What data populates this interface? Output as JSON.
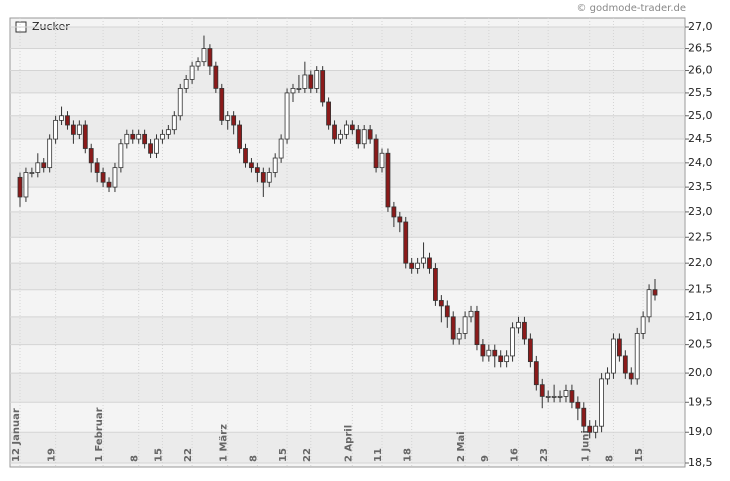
{
  "chart_data": {
    "type": "candlestick",
    "series_name": "Zucker",
    "copyright": "© godmode-trader.de",
    "log_scale": true,
    "grid": true,
    "up_color": "#ffffff",
    "down_color": "#8b1a1a",
    "stroke_color": "#333333",
    "ylim": [
      18.5,
      27.0
    ],
    "yticks": [
      {
        "value": 18.5,
        "label": "18,5"
      },
      {
        "value": 19.0,
        "label": "19,0"
      },
      {
        "value": 19.5,
        "label": "19,5"
      },
      {
        "value": 20.0,
        "label": "20,0"
      },
      {
        "value": 20.5,
        "label": "20,5"
      },
      {
        "value": 21.0,
        "label": "21,0"
      },
      {
        "value": 21.5,
        "label": "21,5"
      },
      {
        "value": 22.0,
        "label": "22,0"
      },
      {
        "value": 22.5,
        "label": "22,5"
      },
      {
        "value": 23.0,
        "label": "23,0"
      },
      {
        "value": 23.5,
        "label": "23,5"
      },
      {
        "value": 24.0,
        "label": "24,0"
      },
      {
        "value": 24.5,
        "label": "24,5"
      },
      {
        "value": 25.0,
        "label": "25,0"
      },
      {
        "value": 25.5,
        "label": "25,5"
      },
      {
        "value": 26.0,
        "label": "26,0"
      },
      {
        "value": 26.5,
        "label": "26,5"
      },
      {
        "value": 27.0,
        "label": "27,0"
      }
    ],
    "categories": [
      "12 Januar",
      null,
      null,
      null,
      null,
      null,
      "19",
      null,
      null,
      null,
      null,
      null,
      null,
      null,
      "1 Februar",
      null,
      null,
      null,
      null,
      null,
      "8",
      null,
      null,
      null,
      "15",
      null,
      null,
      null,
      null,
      "22",
      null,
      null,
      null,
      null,
      null,
      "1 März",
      null,
      null,
      null,
      null,
      "8",
      null,
      null,
      null,
      null,
      "15",
      null,
      null,
      null,
      "22",
      null,
      null,
      null,
      null,
      null,
      null,
      "2 April",
      null,
      null,
      null,
      null,
      "11",
      null,
      null,
      null,
      null,
      "18",
      null,
      null,
      null,
      null,
      null,
      null,
      null,
      null,
      "2 Mai",
      null,
      null,
      null,
      "9",
      null,
      null,
      null,
      null,
      "16",
      null,
      null,
      null,
      null,
      "23",
      null,
      null,
      null,
      null,
      null,
      null,
      "1 Juni",
      null,
      null,
      null,
      "8",
      null,
      null,
      null,
      null,
      "15",
      null,
      null
    ],
    "open": [
      23.7,
      23.3,
      23.8,
      23.8,
      24.0,
      23.9,
      24.5,
      24.9,
      25.0,
      24.8,
      24.6,
      24.8,
      24.3,
      24.0,
      23.8,
      23.6,
      23.5,
      23.9,
      24.4,
      24.6,
      24.5,
      24.6,
      24.4,
      24.2,
      24.5,
      24.6,
      24.7,
      25.0,
      25.6,
      25.8,
      26.1,
      26.2,
      26.5,
      26.1,
      25.6,
      24.9,
      25.0,
      24.8,
      24.3,
      24.0,
      23.9,
      23.8,
      23.6,
      23.8,
      24.1,
      24.5,
      25.5,
      25.6,
      25.6,
      25.9,
      25.6,
      26.0,
      25.3,
      24.8,
      24.5,
      24.6,
      24.8,
      24.7,
      24.4,
      24.7,
      24.5,
      23.9,
      24.2,
      23.1,
      22.9,
      22.8,
      22.0,
      21.9,
      22.0,
      22.1,
      21.9,
      21.3,
      21.2,
      21.0,
      20.6,
      20.7,
      21.0,
      21.1,
      20.5,
      20.3,
      20.4,
      20.3,
      20.2,
      20.3,
      20.8,
      20.9,
      20.6,
      20.2,
      19.8,
      19.6,
      19.6,
      19.6,
      19.6,
      19.7,
      19.5,
      19.4,
      19.1,
      19.0,
      19.1,
      19.9,
      20.0,
      20.6,
      20.3,
      20.0,
      19.9,
      20.7,
      21.0,
      21.5
    ],
    "high": [
      23.8,
      23.9,
      23.9,
      24.2,
      24.1,
      24.6,
      25.0,
      25.2,
      25.1,
      24.9,
      24.9,
      24.9,
      24.4,
      24.1,
      23.9,
      23.7,
      24.0,
      24.5,
      24.7,
      24.7,
      24.7,
      24.7,
      24.5,
      24.6,
      24.7,
      24.8,
      25.1,
      25.7,
      25.9,
      26.2,
      26.3,
      26.8,
      26.6,
      26.2,
      25.7,
      25.1,
      25.1,
      24.9,
      24.4,
      24.1,
      24.0,
      23.9,
      23.9,
      24.2,
      24.6,
      25.6,
      25.7,
      25.9,
      26.2,
      26.0,
      26.1,
      26.1,
      25.4,
      24.9,
      24.7,
      24.9,
      24.9,
      24.8,
      24.8,
      24.8,
      24.6,
      24.3,
      24.3,
      23.2,
      23.0,
      22.9,
      22.1,
      22.1,
      22.4,
      22.2,
      22.0,
      21.4,
      21.3,
      21.1,
      20.8,
      21.1,
      21.2,
      21.2,
      20.6,
      20.5,
      20.5,
      20.4,
      20.4,
      20.9,
      21.0,
      21.0,
      20.7,
      20.3,
      19.9,
      19.7,
      19.8,
      19.7,
      19.8,
      19.8,
      19.6,
      19.5,
      19.2,
      19.2,
      20.0,
      20.1,
      20.7,
      20.7,
      20.4,
      20.1,
      20.8,
      21.1,
      21.6,
      21.7
    ],
    "low": [
      23.1,
      23.2,
      23.7,
      23.7,
      23.8,
      23.8,
      24.4,
      24.8,
      24.7,
      24.4,
      24.5,
      24.2,
      23.8,
      23.6,
      23.5,
      23.4,
      23.4,
      23.8,
      24.3,
      24.4,
      24.4,
      24.3,
      24.1,
      24.1,
      24.4,
      24.5,
      24.6,
      24.9,
      25.5,
      25.7,
      26.0,
      26.1,
      25.9,
      25.5,
      24.8,
      24.7,
      24.6,
      24.2,
      23.9,
      23.8,
      23.6,
      23.3,
      23.5,
      23.7,
      24.0,
      24.4,
      25.3,
      25.5,
      25.5,
      25.5,
      25.5,
      25.2,
      24.7,
      24.4,
      24.4,
      24.5,
      24.6,
      24.3,
      24.3,
      24.4,
      23.8,
      23.8,
      23.0,
      22.7,
      22.6,
      21.9,
      21.8,
      21.8,
      21.9,
      21.8,
      21.2,
      20.9,
      20.8,
      20.5,
      20.5,
      20.6,
      20.9,
      20.4,
      20.2,
      20.2,
      20.1,
      20.1,
      20.1,
      20.2,
      20.7,
      20.5,
      20.1,
      19.7,
      19.4,
      19.5,
      19.5,
      19.5,
      19.5,
      19.4,
      19.2,
      19.0,
      18.9,
      18.9,
      19.0,
      19.8,
      19.9,
      20.2,
      19.9,
      19.8,
      19.8,
      20.6,
      20.9,
      21.3
    ],
    "close": [
      23.3,
      23.8,
      23.8,
      24.0,
      23.9,
      24.5,
      24.9,
      25.0,
      24.8,
      24.6,
      24.8,
      24.3,
      24.0,
      23.8,
      23.6,
      23.5,
      23.9,
      24.4,
      24.6,
      24.5,
      24.6,
      24.4,
      24.2,
      24.5,
      24.6,
      24.7,
      25.0,
      25.6,
      25.8,
      26.1,
      26.2,
      26.5,
      26.1,
      25.6,
      24.9,
      25.0,
      24.8,
      24.3,
      24.0,
      23.9,
      23.8,
      23.6,
      23.8,
      24.1,
      24.5,
      25.5,
      25.6,
      25.6,
      25.9,
      25.6,
      26.0,
      25.3,
      24.8,
      24.5,
      24.6,
      24.8,
      24.7,
      24.4,
      24.7,
      24.5,
      23.9,
      24.2,
      23.1,
      22.9,
      22.8,
      22.0,
      21.9,
      22.0,
      22.1,
      21.9,
      21.3,
      21.2,
      21.0,
      20.6,
      20.7,
      21.0,
      21.1,
      20.5,
      20.3,
      20.4,
      20.3,
      20.2,
      20.3,
      20.8,
      20.9,
      20.6,
      20.2,
      19.8,
      19.6,
      19.6,
      19.6,
      19.6,
      19.7,
      19.5,
      19.4,
      19.1,
      19.0,
      19.1,
      19.9,
      20.0,
      20.6,
      20.3,
      20.0,
      19.9,
      20.7,
      21.0,
      21.5,
      21.4
    ]
  }
}
